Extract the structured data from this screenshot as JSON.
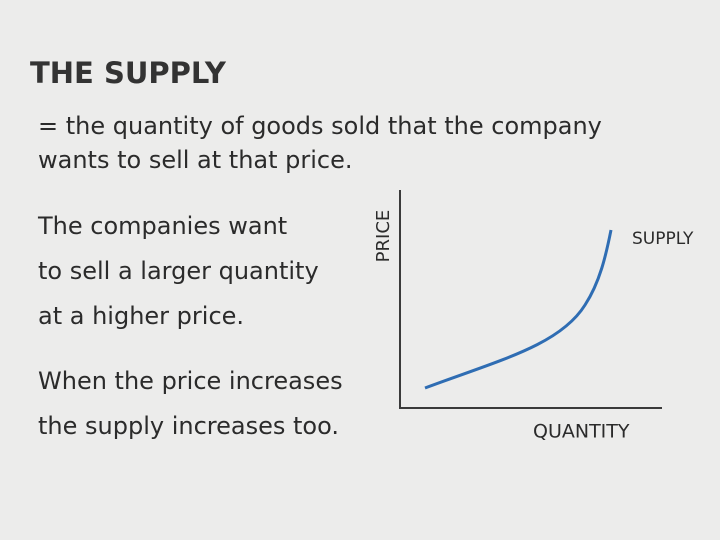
{
  "title": "THE SUPPLY",
  "definition": [
    "= the quantity of goods sold that the company",
    "wants to sell at that price."
  ],
  "paragraphs": [
    [
      "The companies want",
      "to sell a larger quantity",
      "at a higher price."
    ],
    [
      "When the price increases",
      "the supply increases too."
    ]
  ],
  "diagram": {
    "y_axis_label": "PRICE",
    "x_axis_label": "QUANTITY",
    "curve_label": "SUPPLY"
  }
}
